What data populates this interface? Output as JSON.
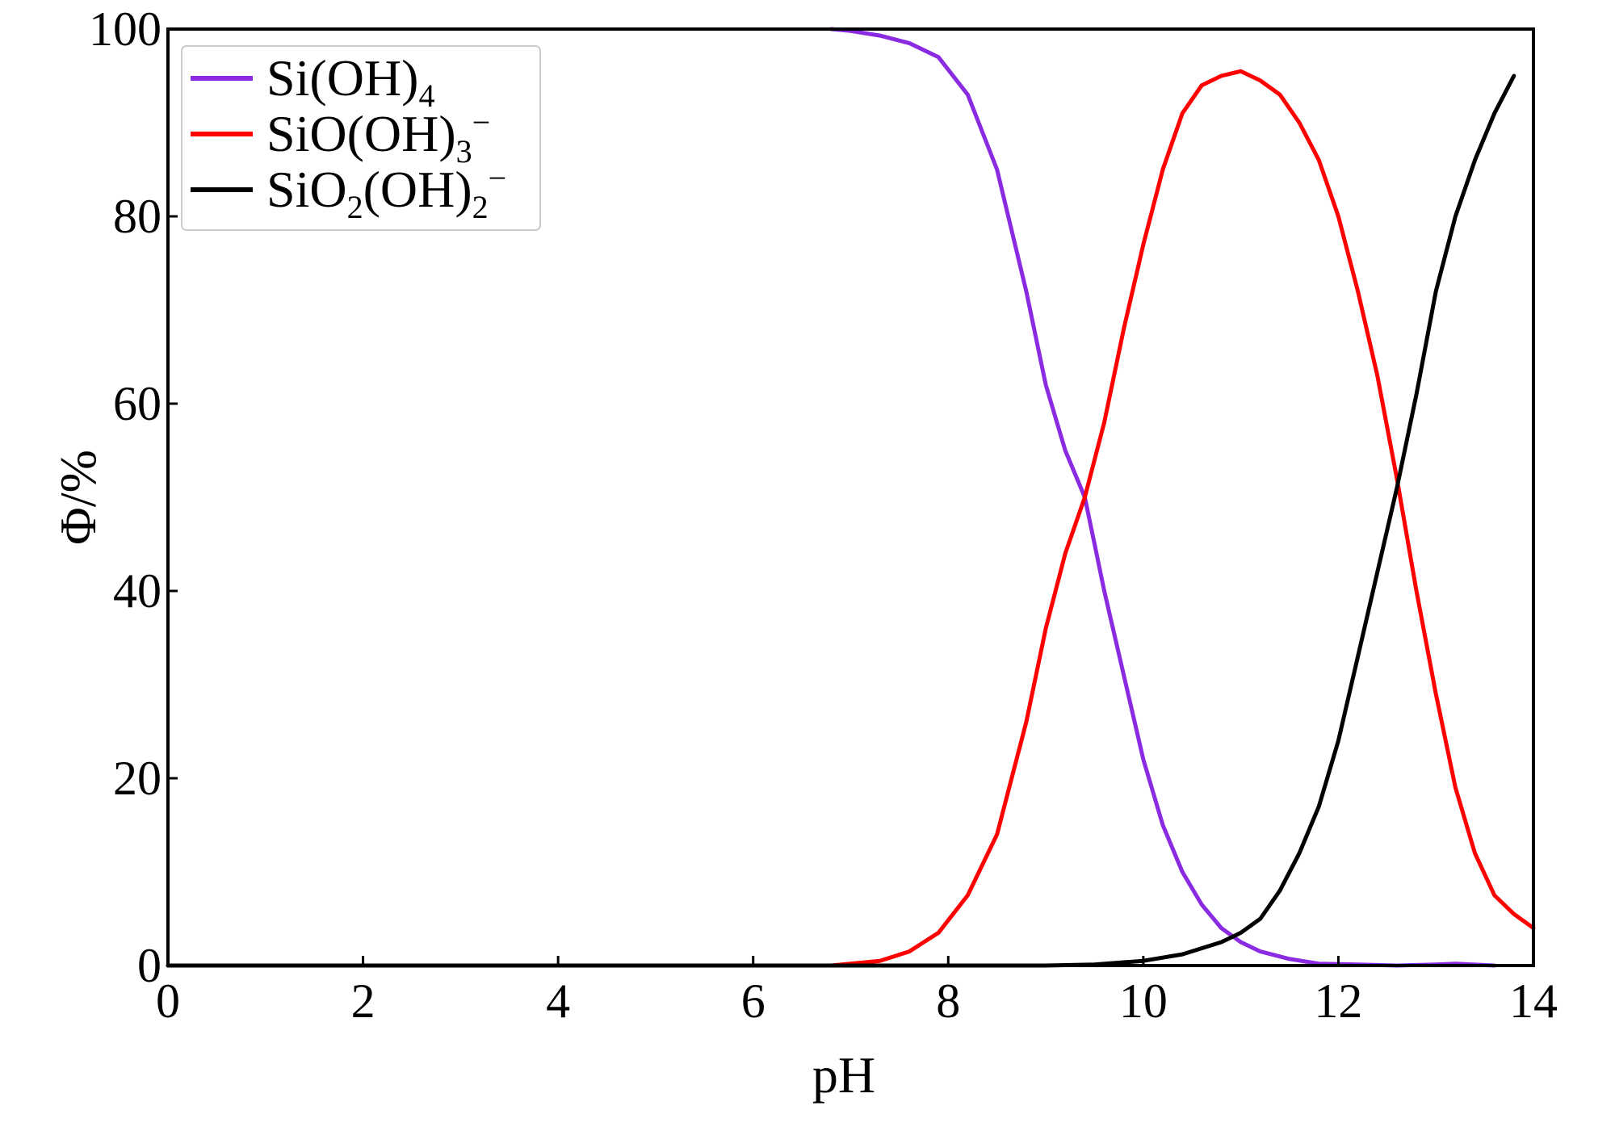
{
  "chart_data": {
    "type": "line",
    "title": "",
    "xlabel": "pH",
    "ylabel": "Φ/%",
    "xlim": [
      0,
      14
    ],
    "ylim": [
      0,
      100
    ],
    "xticks": [
      0,
      2,
      4,
      6,
      8,
      10,
      12,
      14
    ],
    "yticks": [
      0,
      20,
      40,
      60,
      80,
      100
    ],
    "grid": false,
    "legend": "top-left",
    "series": [
      {
        "name": "Si(OH)4",
        "label_parts": [
          {
            "t": "Si(OH)"
          },
          {
            "t": "4",
            "sub": true
          }
        ],
        "color": "#8a2be2",
        "x": [
          6.8,
          7.0,
          7.3,
          7.6,
          7.9,
          8.2,
          8.5,
          8.8,
          9.0,
          9.2,
          9.4,
          9.5,
          9.6,
          9.8,
          10.0,
          10.2,
          10.4,
          10.6,
          10.8,
          11.0,
          11.2,
          11.5,
          11.8,
          12.2,
          12.6,
          13.0,
          13.2,
          13.6
        ],
        "y": [
          100,
          99.8,
          99.3,
          98.5,
          97,
          93,
          85,
          72,
          62,
          55,
          50,
          45,
          40,
          31,
          22,
          15,
          10,
          6.5,
          4,
          2.5,
          1.5,
          0.7,
          0.2,
          0.1,
          0,
          0.1,
          0.2,
          0
        ]
      },
      {
        "name": "SiO(OH)3−",
        "label_parts": [
          {
            "t": "SiO(OH)"
          },
          {
            "t": "3",
            "sub": true
          },
          {
            "t": "−",
            "sup": true
          }
        ],
        "color": "#ff0000",
        "x": [
          0,
          2,
          4,
          6,
          6.8,
          7.3,
          7.6,
          7.9,
          8.2,
          8.5,
          8.8,
          9.0,
          9.2,
          9.4,
          9.6,
          9.8,
          10.0,
          10.2,
          10.4,
          10.6,
          10.8,
          11.0,
          11.2,
          11.4,
          11.6,
          11.8,
          12.0,
          12.2,
          12.4,
          12.6,
          12.8,
          13.0,
          13.2,
          13.4,
          13.6,
          13.8,
          14.0
        ],
        "y": [
          0,
          0,
          0,
          0,
          0,
          0.5,
          1.5,
          3.5,
          7.5,
          14,
          26,
          36,
          44,
          50,
          58,
          68,
          77,
          85,
          91,
          94,
          95,
          95.5,
          94.5,
          93,
          90,
          86,
          80,
          72,
          63,
          52,
          40,
          29,
          19,
          12,
          7.5,
          5.5,
          4
        ]
      },
      {
        "name": "SiO2(OH)2−",
        "label_parts": [
          {
            "t": "SiO"
          },
          {
            "t": "2",
            "sub": true
          },
          {
            "t": "(OH)"
          },
          {
            "t": "2",
            "sub": true
          },
          {
            "t": "−",
            "sup": true
          }
        ],
        "color": "#000000",
        "x": [
          0,
          2,
          4,
          6,
          8,
          9.0,
          9.5,
          10.0,
          10.4,
          10.8,
          11.0,
          11.2,
          11.4,
          11.6,
          11.8,
          12.0,
          12.2,
          12.4,
          12.6,
          12.8,
          13.0,
          13.2,
          13.4,
          13.6,
          13.8
        ],
        "y": [
          0,
          0,
          0,
          0,
          0,
          0,
          0.1,
          0.5,
          1.2,
          2.5,
          3.5,
          5,
          8,
          12,
          17,
          24,
          33,
          42,
          51,
          61,
          72,
          80,
          86,
          91,
          95
        ]
      }
    ]
  }
}
